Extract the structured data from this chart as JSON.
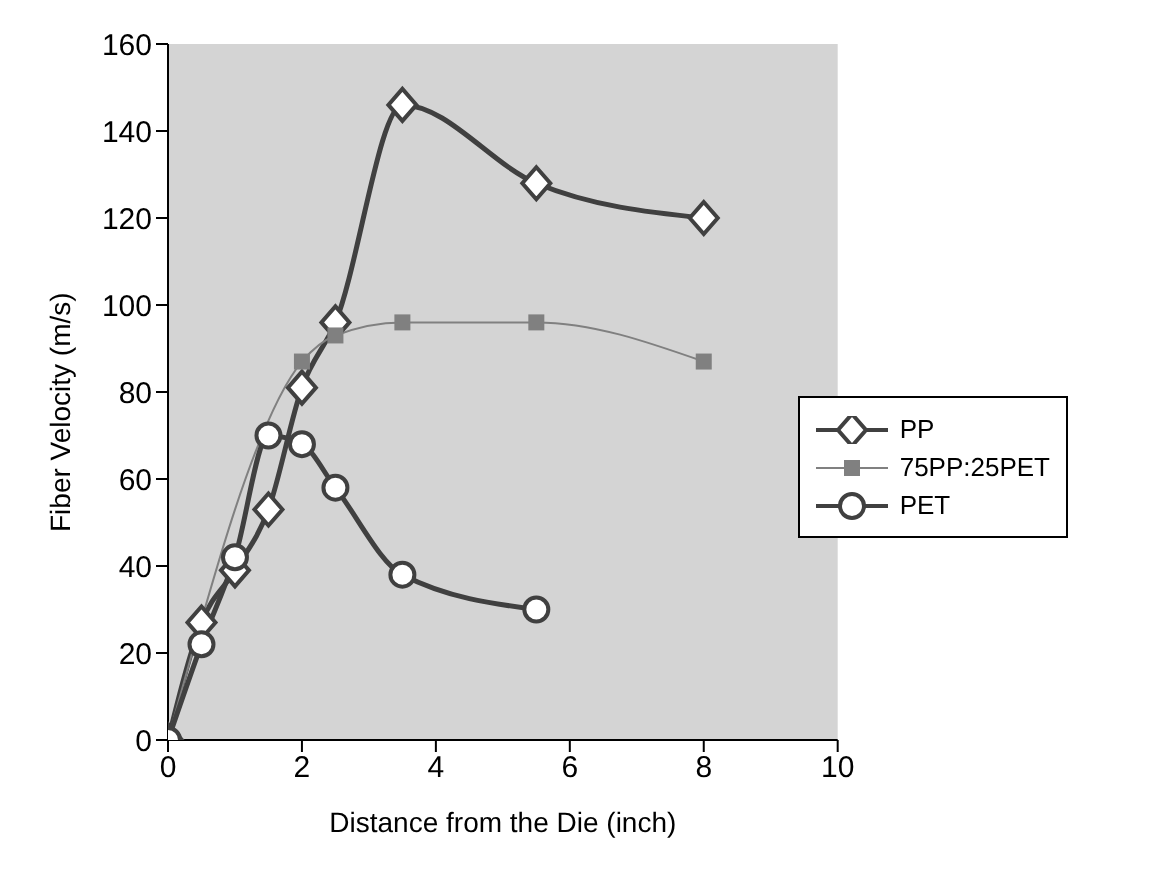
{
  "chart_data": {
    "type": "line",
    "xlabel": "Distance from the Die (inch)",
    "ylabel": "Fiber Velocity (m/s)",
    "xlim": [
      0,
      10
    ],
    "xticks": [
      0,
      2,
      4,
      6,
      8,
      10
    ],
    "ylim": [
      0,
      160
    ],
    "yticks": [
      0,
      20,
      40,
      60,
      80,
      100,
      120,
      140,
      160
    ],
    "grid": false,
    "legend": "right",
    "series": [
      {
        "name": "PP",
        "color": "#404040",
        "marker": "diamond",
        "x": [
          0,
          0.5,
          1,
          1.5,
          2,
          2.5,
          3.5,
          5.5,
          8
        ],
        "values": [
          0,
          27,
          39,
          53,
          81,
          96,
          146,
          128,
          120
        ]
      },
      {
        "name": "75PP:25PET",
        "color": "#808080",
        "marker": "square",
        "x": [
          0,
          2,
          2.5,
          3.5,
          5.5,
          8
        ],
        "values": [
          0,
          87,
          93,
          96,
          96,
          87
        ]
      },
      {
        "name": "PET",
        "color": "#404040",
        "marker": "circle",
        "x": [
          0,
          0.5,
          1,
          1.5,
          2,
          2.5,
          3.5,
          5.5
        ],
        "values": [
          0,
          22,
          42,
          70,
          68,
          58,
          38,
          30
        ]
      }
    ]
  }
}
